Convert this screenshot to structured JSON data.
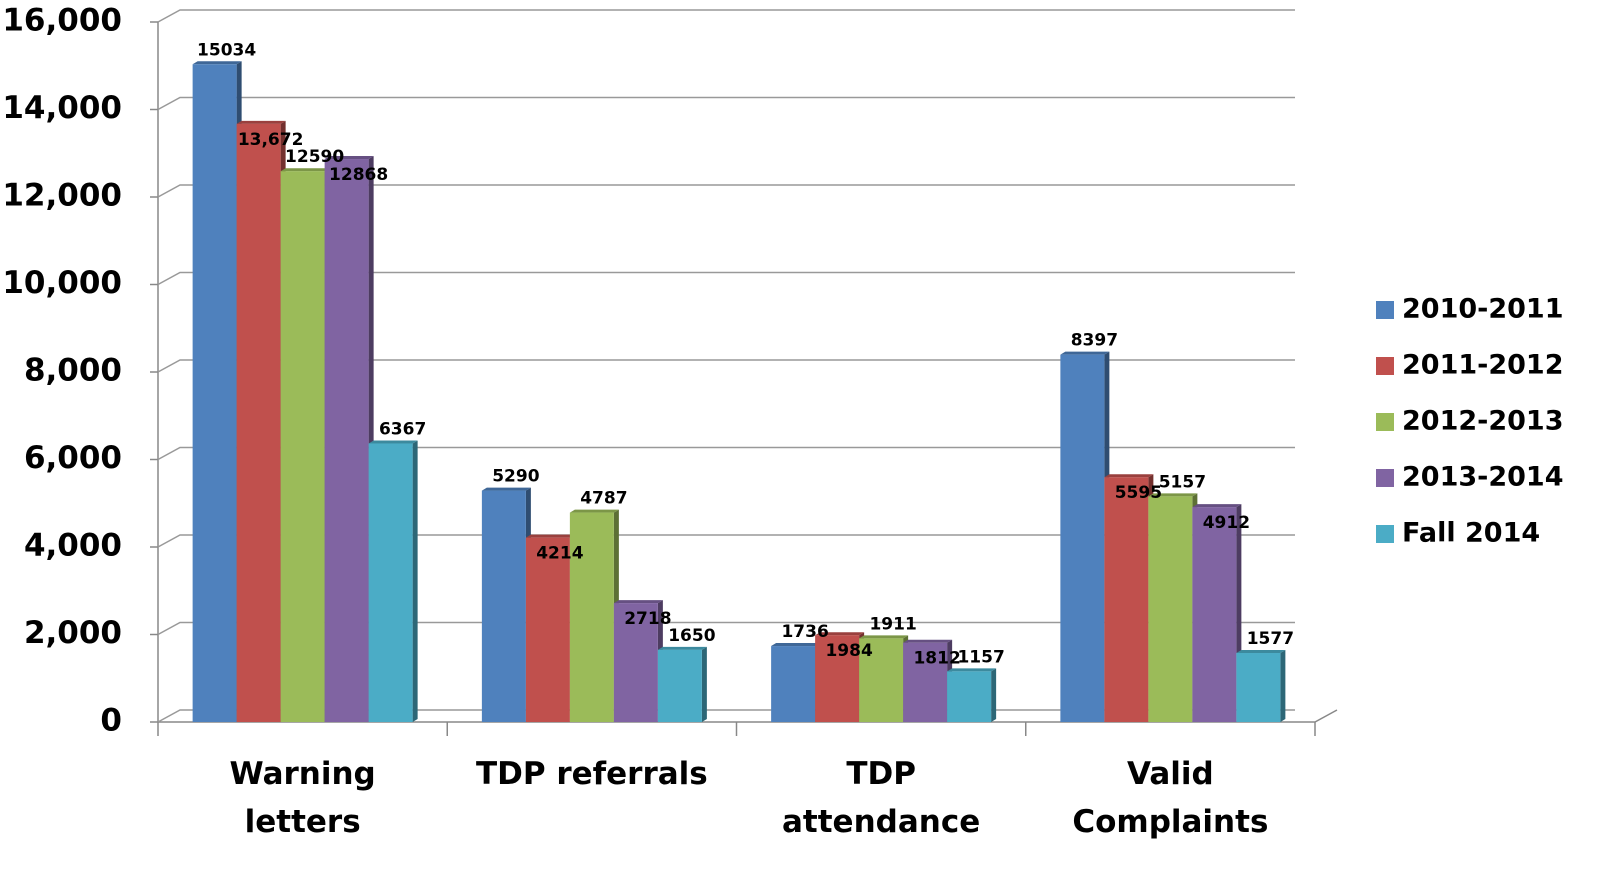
{
  "chart_data": {
    "type": "bar",
    "categories": [
      "Warning letters",
      "TDP referrals",
      "TDP attendance",
      "Valid Complaints"
    ],
    "series": [
      {
        "name": "2010-2011",
        "color": "#4f81bd",
        "values": [
          15034,
          5290,
          1736,
          8397
        ]
      },
      {
        "name": "2011-2012",
        "color": "#c0504d",
        "values": [
          13672,
          4214,
          1984,
          5595
        ],
        "value_labels": [
          "13,672",
          "4214",
          "1984",
          "5595"
        ]
      },
      {
        "name": "2012-2013",
        "color": "#9bbb59",
        "values": [
          12590,
          4787,
          1911,
          5157
        ]
      },
      {
        "name": "2013-2014",
        "color": "#8064a2",
        "values": [
          12868,
          2718,
          1812,
          4912
        ]
      },
      {
        "name": "Fall 2014",
        "color": "#4bacc6",
        "values": [
          6367,
          1650,
          1157,
          1577
        ]
      }
    ],
    "ylim": [
      0,
      16000
    ],
    "yticks": [
      0,
      {
        "value": 2000,
        "label": "2,000"
      },
      {
        "value": 4000,
        "label": "4,000"
      },
      {
        "value": 6000,
        "label": "6,000"
      },
      {
        "value": 8000,
        "label": "8,000"
      },
      {
        "value": 10000,
        "label": "10,000"
      },
      {
        "value": 12000,
        "label": "12,000"
      },
      {
        "value": 14000,
        "label": "14,000"
      },
      {
        "value": 16000,
        "label": "16,000"
      }
    ],
    "grid": true,
    "legend": "right"
  }
}
